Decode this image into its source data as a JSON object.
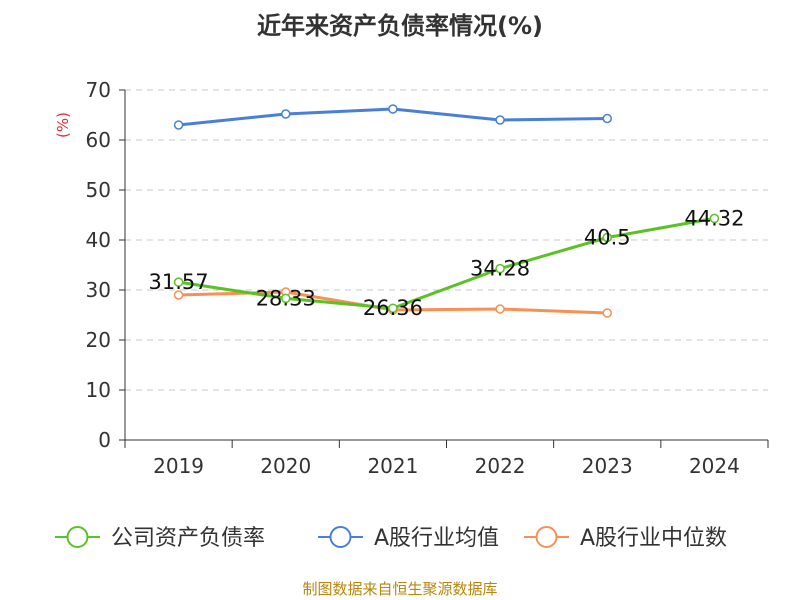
{
  "chart_data": {
    "type": "line",
    "title": "近年来资产负债率情况(%)",
    "ylabel": "(%)",
    "xlabel": "",
    "categories": [
      "2019",
      "2020",
      "2021",
      "2022",
      "2023",
      "2024"
    ],
    "ylim": [
      0,
      70
    ],
    "yticks": [
      0,
      10,
      20,
      30,
      40,
      50,
      60,
      70
    ],
    "grid": true,
    "legend_position": "bottom",
    "series": [
      {
        "name": "公司资产负债率",
        "color": "#5bc225",
        "values": [
          31.57,
          28.33,
          26.36,
          34.28,
          40.5,
          44.32
        ],
        "labels": [
          "31.57",
          "28.33",
          "26.36",
          "34.28",
          "40.5",
          "44.32"
        ]
      },
      {
        "name": "A股行业均值",
        "color": "#4a7fd8",
        "values": [
          63.0,
          65.2,
          66.2,
          64.0,
          64.3,
          null
        ]
      },
      {
        "name": "A股行业中位数",
        "color": "#f79055",
        "values": [
          29.0,
          29.6,
          26.0,
          26.2,
          25.4,
          null
        ]
      }
    ]
  },
  "source": "制图数据来自恒生聚源数据库"
}
